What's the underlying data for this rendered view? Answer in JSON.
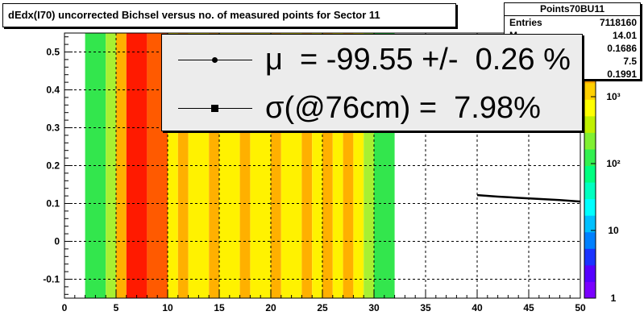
{
  "title": "dEdx(I70) uncorrected Bichsel versus no. of measured points for Sector 11",
  "stats": {
    "name": "Points70BU11",
    "rows": [
      {
        "label": "Entries",
        "value": "7118160"
      },
      {
        "label": "M",
        "value": "14.01"
      },
      {
        "label": "",
        "value": "0.1686"
      },
      {
        "label": "",
        "value": "7.5"
      },
      {
        "label": "",
        "value": "0.1991"
      }
    ]
  },
  "legend": {
    "mu_text": "μ  = -99.55 +/-  0.26 %",
    "sigma_text": "σ(@76cm) =  7.98%"
  },
  "chart_data": {
    "type": "heatmap",
    "title": "dEdx(I70) uncorrected Bichsel versus no. of measured points for Sector 11",
    "xlabel": "",
    "ylabel": "",
    "xlim": [
      0,
      50
    ],
    "ylim": [
      -0.15,
      0.55
    ],
    "x_ticks": [
      "0",
      "5",
      "10",
      "15",
      "20",
      "25",
      "30",
      "35",
      "40",
      "45",
      "50"
    ],
    "y_ticks": [
      "-0.1",
      "0",
      "0.1",
      "0.2",
      "0.3",
      "0.4",
      "0.5"
    ],
    "z_scale": "log",
    "z_ticks": [
      "1",
      "10",
      "10²",
      "10³"
    ],
    "grid": true,
    "columns": [
      {
        "x": [
          2,
          4
        ],
        "level": "green"
      },
      {
        "x": [
          4,
          5
        ],
        "level": "yellow-green"
      },
      {
        "x": [
          5,
          6
        ],
        "level": "orange"
      },
      {
        "x": [
          6,
          8
        ],
        "level": "red"
      },
      {
        "x": [
          8,
          10
        ],
        "level": "orange-red"
      },
      {
        "x": [
          10,
          11
        ],
        "level": "yellow"
      },
      {
        "x": [
          11,
          12
        ],
        "level": "orange"
      },
      {
        "x": [
          12,
          14
        ],
        "level": "yellow"
      },
      {
        "x": [
          14,
          15
        ],
        "level": "orange"
      },
      {
        "x": [
          15,
          17
        ],
        "level": "yellow"
      },
      {
        "x": [
          17,
          18
        ],
        "level": "orange"
      },
      {
        "x": [
          18,
          20
        ],
        "level": "yellow"
      },
      {
        "x": [
          20,
          21
        ],
        "level": "orange"
      },
      {
        "x": [
          21,
          23
        ],
        "level": "yellow"
      },
      {
        "x": [
          23,
          24
        ],
        "level": "orange"
      },
      {
        "x": [
          24,
          25
        ],
        "level": "yellow"
      },
      {
        "x": [
          25,
          26
        ],
        "level": "orange"
      },
      {
        "x": [
          26,
          27
        ],
        "level": "yellow"
      },
      {
        "x": [
          27,
          28
        ],
        "level": "orange"
      },
      {
        "x": [
          28,
          29
        ],
        "level": "yellow"
      },
      {
        "x": [
          29,
          30
        ],
        "level": "yellow-green"
      },
      {
        "x": [
          30,
          32
        ],
        "level": "green"
      }
    ],
    "series": [
      {
        "type": "line",
        "x": [
          40,
          42,
          44,
          46,
          48,
          50
        ],
        "y": [
          0.122,
          0.118,
          0.115,
          0.112,
          0.109,
          0.105
        ]
      }
    ],
    "colors": {
      "green": "#33e64d",
      "yellow-green": "#a8f032",
      "yellow": "#fff200",
      "orange": "#ffb000",
      "orange-red": "#ff5a00",
      "red": "#ff1a00"
    },
    "palette": [
      "#7a00ff",
      "#5500ff",
      "#1a33ff",
      "#0080ff",
      "#00c0ff",
      "#00ffff",
      "#00ffc0",
      "#00ff80",
      "#33f050",
      "#80f032",
      "#c0f000",
      "#ffff00",
      "#ffd000",
      "#ffa000",
      "#ff6000",
      "#ff2000"
    ]
  }
}
